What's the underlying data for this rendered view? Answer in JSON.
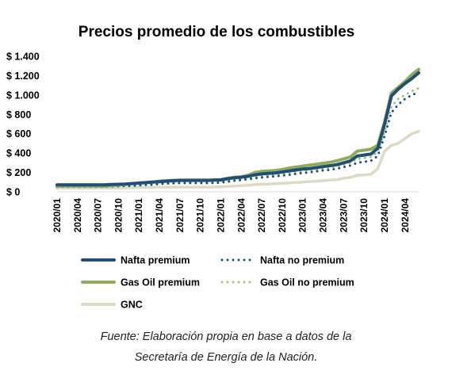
{
  "chart_data": {
    "type": "line",
    "title": "Precios promedio de los combustibles",
    "xlabel": "",
    "ylabel": "",
    "ylim": [
      0,
      1400
    ],
    "yticks": [
      0,
      200,
      400,
      600,
      800,
      1000,
      1200,
      1400
    ],
    "ytick_labels": [
      "$ 0",
      "$ 200",
      "$ 400",
      "$ 600",
      "$ 800",
      "$ 1.000",
      "$ 1.200",
      "$ 1.400"
    ],
    "xtick_labels": [
      "2020/01",
      "2020/04",
      "2020/07",
      "2020/10",
      "2021/01",
      "2021/04",
      "2021/07",
      "2021/10",
      "2022/01",
      "2022/04",
      "2022/07",
      "2022/10",
      "2023/01",
      "2023/04",
      "2023/07",
      "2023/10",
      "2024/01",
      "2024/04"
    ],
    "x": [
      "2020/01",
      "2020/02",
      "2020/03",
      "2020/04",
      "2020/05",
      "2020/06",
      "2020/07",
      "2020/08",
      "2020/09",
      "2020/10",
      "2020/11",
      "2020/12",
      "2021/01",
      "2021/02",
      "2021/03",
      "2021/04",
      "2021/05",
      "2021/06",
      "2021/07",
      "2021/08",
      "2021/09",
      "2021/10",
      "2021/11",
      "2021/12",
      "2022/01",
      "2022/02",
      "2022/03",
      "2022/04",
      "2022/05",
      "2022/06",
      "2022/07",
      "2022/08",
      "2022/09",
      "2022/10",
      "2022/11",
      "2022/12",
      "2023/01",
      "2023/02",
      "2023/03",
      "2023/04",
      "2023/05",
      "2023/06",
      "2023/07",
      "2023/08",
      "2023/09",
      "2023/10",
      "2023/11",
      "2023/12",
      "2024/01",
      "2024/02",
      "2024/03",
      "2024/04",
      "2024/05",
      "2024/06"
    ],
    "grid": false,
    "legend_position": "bottom",
    "series": [
      {
        "name": "Nafta premium",
        "style": "solid",
        "color": "#1f4e79",
        "values": [
          72,
          72,
          72,
          72,
          72,
          72,
          72,
          72,
          75,
          78,
          80,
          85,
          90,
          95,
          100,
          105,
          110,
          115,
          118,
          118,
          118,
          118,
          118,
          120,
          123,
          135,
          145,
          150,
          160,
          175,
          185,
          190,
          195,
          205,
          215,
          225,
          235,
          240,
          250,
          260,
          270,
          280,
          300,
          320,
          370,
          380,
          390,
          450,
          700,
          990,
          1060,
          1120,
          1170,
          1230
        ]
      },
      {
        "name": "Nafta no premium",
        "style": "dotted",
        "color": "#1f4e79",
        "values": [
          52,
          52,
          52,
          52,
          52,
          52,
          52,
          52,
          55,
          58,
          60,
          62,
          66,
          70,
          74,
          80,
          85,
          88,
          90,
          90,
          90,
          90,
          90,
          92,
          95,
          105,
          115,
          120,
          130,
          140,
          148,
          155,
          160,
          168,
          175,
          185,
          195,
          200,
          210,
          220,
          228,
          238,
          255,
          272,
          300,
          310,
          320,
          370,
          580,
          820,
          900,
          960,
          1000,
          1030
        ]
      },
      {
        "name": "Gas Oil premium",
        "style": "solid",
        "color": "#8fac5a",
        "values": [
          60,
          60,
          60,
          60,
          60,
          60,
          60,
          60,
          65,
          70,
          75,
          85,
          90,
          95,
          100,
          110,
          115,
          118,
          120,
          120,
          120,
          120,
          120,
          122,
          125,
          140,
          150,
          155,
          170,
          200,
          210,
          215,
          220,
          230,
          245,
          255,
          265,
          275,
          285,
          295,
          305,
          320,
          340,
          360,
          420,
          430,
          440,
          480,
          720,
          1020,
          1080,
          1140,
          1210,
          1265
        ]
      },
      {
        "name": "Gas Oil no premium",
        "style": "dotted",
        "color": "#a9c46b",
        "values": [
          50,
          50,
          50,
          50,
          50,
          50,
          50,
          50,
          55,
          58,
          62,
          68,
          72,
          76,
          80,
          88,
          92,
          95,
          98,
          98,
          98,
          98,
          98,
          100,
          103,
          115,
          125,
          130,
          140,
          160,
          168,
          172,
          176,
          185,
          195,
          205,
          215,
          222,
          230,
          240,
          250,
          262,
          280,
          300,
          340,
          350,
          360,
          410,
          620,
          880,
          960,
          1000,
          1040,
          1070
        ]
      },
      {
        "name": "GNC",
        "style": "solid",
        "color": "#ddd9c3",
        "values": [
          38,
          38,
          38,
          38,
          38,
          38,
          38,
          38,
          38,
          40,
          40,
          42,
          44,
          45,
          46,
          48,
          48,
          48,
          48,
          48,
          48,
          48,
          48,
          50,
          52,
          56,
          60,
          64,
          68,
          74,
          78,
          80,
          85,
          88,
          92,
          96,
          100,
          105,
          110,
          115,
          120,
          125,
          140,
          150,
          170,
          175,
          180,
          240,
          420,
          480,
          500,
          550,
          600,
          625
        ]
      }
    ]
  },
  "source": {
    "line1": "Fuente: Elaboración propia en base a datos de la",
    "line2": "Secretaría de Energía de la Nación."
  }
}
